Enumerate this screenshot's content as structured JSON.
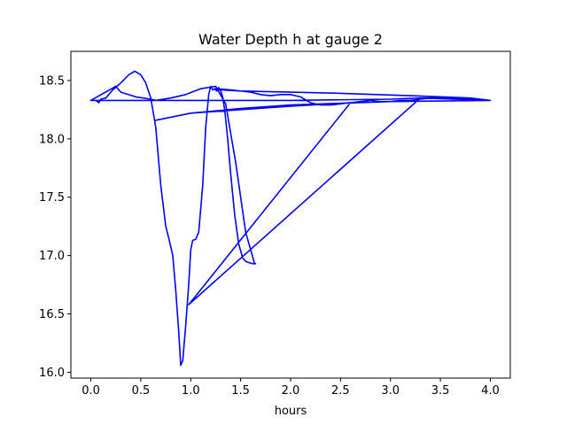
{
  "chart_data": {
    "type": "line",
    "title": "Water Depth h at gauge 2",
    "xlabel": "hours",
    "ylabel": "",
    "xlim": [
      -0.2,
      4.2
    ],
    "ylim": [
      15.95,
      18.75
    ],
    "xticks": [
      0.0,
      0.5,
      1.0,
      1.5,
      2.0,
      2.5,
      3.0,
      3.5,
      4.0
    ],
    "xtick_labels": [
      "0.0",
      "0.5",
      "1.0",
      "1.5",
      "2.0",
      "2.5",
      "3.0",
      "3.5",
      "4.0"
    ],
    "yticks": [
      16.0,
      16.5,
      17.0,
      17.5,
      18.0,
      18.5
    ],
    "ytick_labels": [
      "16.0",
      "16.5",
      "17.0",
      "17.5",
      "18.0",
      "18.5"
    ],
    "grid": false,
    "series": [
      {
        "color": "#0000ff",
        "x": [
          0.0,
          0.05,
          0.08,
          0.1,
          0.15,
          0.22,
          0.3,
          0.38,
          0.44,
          0.5,
          0.55,
          0.6,
          0.65,
          0.7,
          0.75,
          0.78,
          0.82,
          0.85,
          0.88,
          0.9,
          0.92,
          0.95,
          0.98,
          1.0,
          1.02,
          1.05,
          1.08,
          1.12,
          1.15,
          1.18,
          1.2,
          1.22,
          1.24,
          1.26,
          1.28,
          1.3,
          1.32,
          1.34,
          1.37,
          1.4,
          1.44,
          1.48,
          1.52,
          1.55,
          1.58,
          1.62,
          1.65,
          1.64,
          1.55,
          1.45,
          1.35,
          1.25,
          1.1,
          0.95,
          0.8,
          0.65,
          0.6,
          0.45,
          0.3,
          0.25,
          0.0,
          0.3,
          1.0,
          2.0,
          3.0,
          3.3,
          3.5,
          4.0,
          3.8,
          3.2,
          2.5,
          2.0,
          1.5,
          1.3,
          1.25,
          1.4,
          1.6,
          1.7,
          1.8,
          1.9,
          2.0,
          2.05,
          2.1,
          2.2,
          2.3,
          2.4,
          2.5,
          2.6,
          2.7,
          2.8,
          2.9,
          3.0,
          3.1,
          3.2,
          3.3,
          3.4,
          3.5,
          3.6,
          3.7,
          3.8,
          3.9,
          4.0,
          3.0,
          2.0,
          1.5,
          1.0,
          0.65,
          1.0,
          2.0,
          2.6,
          1.0,
          0.98,
          3.3,
          4.0
        ],
        "y": [
          18.33,
          18.33,
          18.31,
          18.34,
          18.35,
          18.42,
          18.48,
          18.55,
          18.58,
          18.55,
          18.48,
          18.35,
          18.1,
          17.6,
          17.25,
          17.15,
          17.0,
          16.7,
          16.35,
          16.06,
          16.1,
          16.4,
          16.75,
          17.05,
          17.13,
          17.14,
          17.2,
          17.6,
          18.1,
          18.38,
          18.45,
          18.42,
          18.43,
          18.41,
          18.44,
          18.41,
          18.36,
          18.25,
          18.0,
          17.7,
          17.35,
          17.1,
          16.98,
          16.95,
          16.94,
          16.93,
          16.93,
          16.93,
          17.2,
          17.8,
          18.3,
          18.45,
          18.43,
          18.38,
          18.35,
          18.33,
          18.34,
          18.36,
          18.4,
          18.45,
          18.33,
          18.33,
          18.33,
          18.33,
          18.34,
          18.35,
          18.35,
          18.33,
          18.35,
          18.37,
          18.39,
          18.4,
          18.41,
          18.42,
          18.43,
          18.42,
          18.4,
          18.38,
          18.37,
          18.38,
          18.38,
          18.37,
          18.36,
          18.31,
          18.29,
          18.29,
          18.3,
          18.31,
          18.32,
          18.33,
          18.32,
          18.32,
          18.33,
          18.33,
          18.34,
          18.35,
          18.35,
          18.35,
          18.34,
          18.33,
          18.33,
          18.33,
          18.32,
          18.29,
          18.26,
          18.22,
          18.16,
          18.22,
          18.28,
          18.31,
          16.6,
          16.58,
          18.35,
          18.33
        ]
      }
    ]
  }
}
